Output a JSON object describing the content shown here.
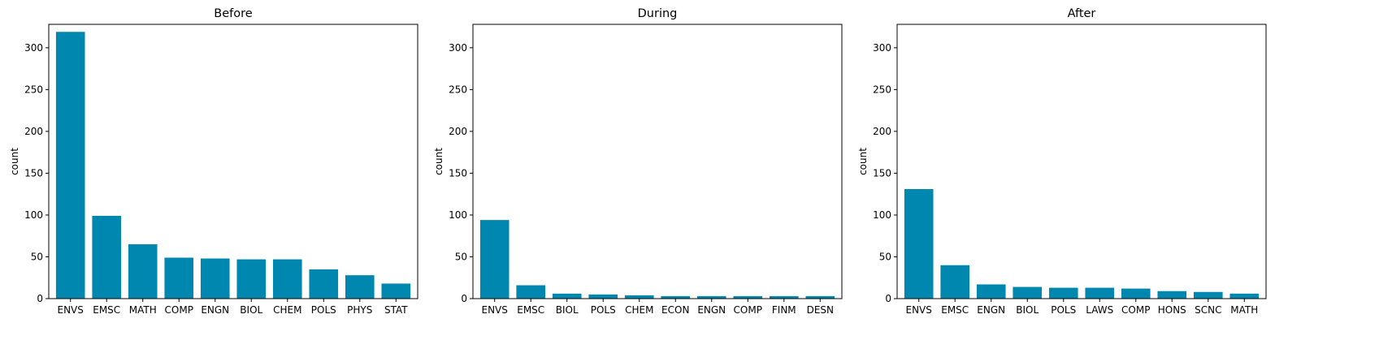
{
  "chart_data": [
    {
      "type": "bar",
      "title": "Before",
      "xlabel": "",
      "ylabel": "count",
      "ylim": [
        0,
        328
      ],
      "yticks": [
        0,
        50,
        100,
        150,
        200,
        250,
        300
      ],
      "color": "#0087b0",
      "categories": [
        "ENVS",
        "EMSC",
        "MATH",
        "COMP",
        "ENGN",
        "BIOL",
        "CHEM",
        "POLS",
        "PHYS",
        "STAT"
      ],
      "values": [
        319,
        99,
        65,
        49,
        48,
        47,
        47,
        35,
        28,
        18
      ]
    },
    {
      "type": "bar",
      "title": "During",
      "xlabel": "",
      "ylabel": "count",
      "ylim": [
        0,
        328
      ],
      "yticks": [
        0,
        50,
        100,
        150,
        200,
        250,
        300
      ],
      "color": "#0087b0",
      "categories": [
        "ENVS",
        "EMSC",
        "BIOL",
        "POLS",
        "CHEM",
        "ECON",
        "ENGN",
        "COMP",
        "FINM",
        "DESN"
      ],
      "values": [
        94,
        16,
        6,
        5,
        4,
        3,
        3,
        3,
        3,
        3
      ]
    },
    {
      "type": "bar",
      "title": "After",
      "xlabel": "",
      "ylabel": "count",
      "ylim": [
        0,
        328
      ],
      "yticks": [
        0,
        50,
        100,
        150,
        200,
        250,
        300
      ],
      "color": "#0087b0",
      "categories": [
        "ENVS",
        "EMSC",
        "ENGN",
        "BIOL",
        "POLS",
        "LAWS",
        "COMP",
        "HONS",
        "SCNC",
        "MATH"
      ],
      "values": [
        131,
        40,
        17,
        14,
        13,
        13,
        12,
        9,
        8,
        6
      ]
    }
  ]
}
